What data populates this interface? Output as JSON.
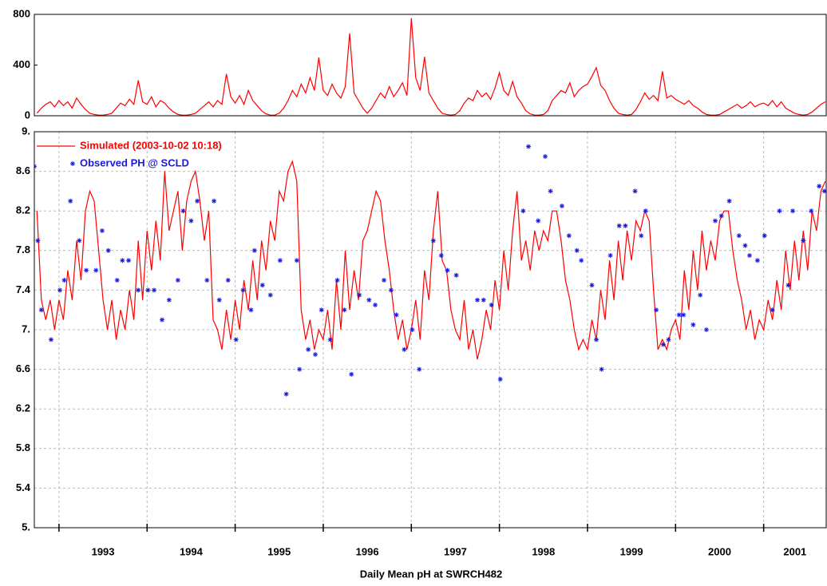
{
  "chart_data": [
    {
      "type": "line",
      "color": "#ff0000",
      "x": [
        1992.75,
        1992.8,
        1992.85,
        1992.9,
        1992.95,
        1993,
        1993.05,
        1993.1,
        1993.15,
        1993.2,
        1993.25,
        1993.3,
        1993.35,
        1993.4,
        1993.45,
        1993.5,
        1993.55,
        1993.6,
        1993.65,
        1993.7,
        1993.75,
        1993.8,
        1993.85,
        1993.9,
        1993.95,
        1994,
        1994.05,
        1994.1,
        1994.15,
        1994.2,
        1994.25,
        1994.3,
        1994.35,
        1994.4,
        1994.45,
        1994.5,
        1994.55,
        1994.6,
        1994.65,
        1994.7,
        1994.75,
        1994.8,
        1994.85,
        1994.9,
        1994.95,
        1995,
        1995.05,
        1995.1,
        1995.15,
        1995.2,
        1995.25,
        1995.3,
        1995.35,
        1995.4,
        1995.45,
        1995.5,
        1995.55,
        1995.6,
        1995.65,
        1995.7,
        1995.75,
        1995.8,
        1995.85,
        1995.9,
        1995.95,
        1996,
        1996.05,
        1996.1,
        1996.15,
        1996.2,
        1996.25,
        1996.3,
        1996.35,
        1996.4,
        1996.45,
        1996.5,
        1996.55,
        1996.6,
        1996.65,
        1996.7,
        1996.75,
        1996.8,
        1996.85,
        1996.9,
        1996.95,
        1997,
        1997.05,
        1997.1,
        1997.15,
        1997.2,
        1997.25,
        1997.3,
        1997.35,
        1997.4,
        1997.45,
        1997.5,
        1997.55,
        1997.6,
        1997.65,
        1997.7,
        1997.75,
        1997.8,
        1997.85,
        1997.9,
        1997.95,
        1998,
        1998.05,
        1998.1,
        1998.15,
        1998.2,
        1998.25,
        1998.3,
        1998.35,
        1998.4,
        1998.45,
        1998.5,
        1998.55,
        1998.6,
        1998.65,
        1998.7,
        1998.75,
        1998.8,
        1998.85,
        1998.9,
        1998.95,
        1999,
        1999.05,
        1999.1,
        1999.15,
        1999.2,
        1999.25,
        1999.3,
        1999.35,
        1999.4,
        1999.45,
        1999.5,
        1999.55,
        1999.6,
        1999.65,
        1999.7,
        1999.75,
        1999.8,
        1999.85,
        1999.9,
        1999.95,
        2000,
        2000.05,
        2000.1,
        2000.15,
        2000.2,
        2000.25,
        2000.3,
        2000.35,
        2000.4,
        2000.45,
        2000.5,
        2000.55,
        2000.6,
        2000.65,
        2000.7,
        2000.75,
        2000.8,
        2000.85,
        2000.9,
        2000.95,
        2001,
        2001.05,
        2001.1,
        2001.15,
        2001.2,
        2001.25,
        2001.3,
        2001.35,
        2001.4,
        2001.45,
        2001.5,
        2001.55,
        2001.6,
        2001.65,
        2001.7
      ],
      "values": [
        20,
        60,
        90,
        110,
        70,
        120,
        80,
        110,
        60,
        140,
        90,
        50,
        20,
        10,
        5,
        5,
        10,
        20,
        60,
        100,
        80,
        130,
        90,
        280,
        110,
        90,
        150,
        70,
        120,
        100,
        60,
        30,
        10,
        5,
        5,
        10,
        20,
        50,
        80,
        110,
        70,
        120,
        90,
        330,
        150,
        100,
        160,
        90,
        200,
        120,
        80,
        40,
        15,
        5,
        5,
        20,
        60,
        120,
        200,
        150,
        250,
        180,
        300,
        200,
        460,
        200,
        160,
        250,
        180,
        140,
        230,
        650,
        180,
        120,
        60,
        20,
        60,
        120,
        180,
        140,
        230,
        150,
        200,
        260,
        160,
        770,
        300,
        200,
        465,
        180,
        120,
        60,
        20,
        10,
        5,
        10,
        40,
        100,
        140,
        120,
        200,
        150,
        180,
        130,
        220,
        340,
        200,
        160,
        270,
        150,
        100,
        40,
        15,
        5,
        5,
        10,
        40,
        120,
        160,
        200,
        180,
        260,
        150,
        200,
        230,
        250,
        310,
        380,
        240,
        200,
        120,
        60,
        20,
        10,
        5,
        10,
        50,
        110,
        180,
        130,
        160,
        120,
        350,
        140,
        160,
        130,
        110,
        90,
        120,
        80,
        60,
        30,
        10,
        5,
        5,
        10,
        30,
        50,
        70,
        90,
        60,
        80,
        110,
        70,
        90,
        100,
        80,
        120,
        70,
        110,
        60,
        40,
        20,
        10,
        5,
        10,
        30,
        60,
        90,
        110
      ],
      "xlim": [
        1992.72,
        2001.71
      ],
      "ylim": [
        0,
        800
      ],
      "yticks": [
        0,
        400,
        800
      ],
      "grid": false
    },
    {
      "type": "line",
      "xlabel": "Daily Mean pH at SWRCH482",
      "legend": "upper left",
      "grid": true,
      "xlim": [
        1992.72,
        2001.71
      ],
      "xticks": [
        1993,
        1994,
        1995,
        1996,
        1997,
        1998,
        1999,
        2000,
        2001
      ],
      "ylim": [
        5,
        9
      ],
      "yticks": [
        {
          "value": 5,
          "label": "5."
        },
        5.4,
        5.8,
        6.2,
        6.6,
        {
          "value": 7,
          "label": "7."
        },
        7.4,
        7.8,
        8.2,
        8.6,
        {
          "value": 9,
          "label": "9."
        }
      ],
      "series": [
        {
          "name": "Simulated (2003-10-02 10:18)",
          "color": "#ff0000",
          "style": "line",
          "x": [
            1992.75,
            1992.8,
            1992.85,
            1992.9,
            1992.95,
            1993,
            1993.05,
            1993.1,
            1993.15,
            1993.2,
            1993.25,
            1993.3,
            1993.35,
            1993.4,
            1993.45,
            1993.5,
            1993.55,
            1993.6,
            1993.65,
            1993.7,
            1993.75,
            1993.8,
            1993.85,
            1993.9,
            1993.95,
            1994,
            1994.05,
            1994.1,
            1994.15,
            1994.2,
            1994.25,
            1994.3,
            1994.35,
            1994.4,
            1994.45,
            1994.5,
            1994.55,
            1994.6,
            1994.65,
            1994.7,
            1994.75,
            1994.8,
            1994.85,
            1994.9,
            1994.95,
            1995,
            1995.05,
            1995.1,
            1995.15,
            1995.2,
            1995.25,
            1995.3,
            1995.35,
            1995.4,
            1995.45,
            1995.5,
            1995.55,
            1995.6,
            1995.65,
            1995.7,
            1995.75,
            1995.8,
            1995.85,
            1995.9,
            1995.95,
            1996,
            1996.05,
            1996.1,
            1996.15,
            1996.2,
            1996.25,
            1996.3,
            1996.35,
            1996.4,
            1996.45,
            1996.5,
            1996.55,
            1996.6,
            1996.65,
            1996.7,
            1996.75,
            1996.8,
            1996.85,
            1996.9,
            1996.95,
            1997,
            1997.05,
            1997.1,
            1997.15,
            1997.2,
            1997.25,
            1997.3,
            1997.35,
            1997.4,
            1997.45,
            1997.5,
            1997.55,
            1997.6,
            1997.65,
            1997.7,
            1997.75,
            1997.8,
            1997.85,
            1997.9,
            1997.95,
            1998,
            1998.05,
            1998.1,
            1998.15,
            1998.2,
            1998.25,
            1998.3,
            1998.35,
            1998.4,
            1998.45,
            1998.5,
            1998.55,
            1998.6,
            1998.65,
            1998.7,
            1998.75,
            1998.8,
            1998.85,
            1998.9,
            1998.95,
            1999,
            1999.05,
            1999.1,
            1999.15,
            1999.2,
            1999.25,
            1999.3,
            1999.35,
            1999.4,
            1999.45,
            1999.5,
            1999.55,
            1999.6,
            1999.65,
            1999.7,
            1999.75,
            1999.8,
            1999.85,
            1999.9,
            1999.95,
            2000,
            2000.05,
            2000.1,
            2000.15,
            2000.2,
            2000.25,
            2000.3,
            2000.35,
            2000.4,
            2000.45,
            2000.5,
            2000.55,
            2000.6,
            2000.65,
            2000.7,
            2000.75,
            2000.8,
            2000.85,
            2000.9,
            2000.95,
            2001,
            2001.05,
            2001.1,
            2001.15,
            2001.2,
            2001.25,
            2001.3,
            2001.35,
            2001.4,
            2001.45,
            2001.5,
            2001.55,
            2001.6,
            2001.65,
            2001.7
          ],
          "values": [
            8.2,
            7.3,
            7.1,
            7.3,
            7.0,
            7.3,
            7.1,
            7.6,
            7.3,
            7.9,
            7.5,
            8.2,
            8.4,
            8.3,
            7.8,
            7.3,
            7.0,
            7.3,
            6.9,
            7.2,
            7.0,
            7.4,
            7.1,
            7.9,
            7.3,
            8.0,
            7.6,
            8.1,
            7.7,
            8.6,
            8.0,
            8.2,
            8.4,
            7.8,
            8.3,
            8.5,
            8.6,
            8.3,
            7.9,
            8.2,
            7.1,
            7.0,
            6.8,
            7.2,
            6.9,
            7.3,
            7.0,
            7.5,
            7.2,
            7.7,
            7.3,
            7.9,
            7.6,
            8.1,
            7.9,
            8.4,
            8.3,
            8.6,
            8.7,
            8.5,
            7.2,
            6.9,
            7.1,
            6.8,
            7.0,
            6.9,
            7.2,
            6.8,
            7.5,
            7.0,
            7.8,
            7.2,
            7.6,
            7.3,
            7.9,
            8.0,
            8.2,
            8.4,
            8.3,
            7.9,
            7.6,
            7.2,
            6.9,
            7.1,
            6.8,
            7.0,
            7.3,
            6.9,
            7.6,
            7.3,
            8.0,
            8.4,
            7.7,
            7.6,
            7.2,
            7.0,
            6.9,
            7.3,
            6.8,
            7.0,
            6.7,
            6.9,
            7.2,
            7.0,
            7.5,
            7.2,
            7.8,
            7.4,
            8.0,
            8.4,
            7.7,
            7.9,
            7.6,
            8.0,
            7.8,
            8.0,
            7.9,
            8.2,
            8.2,
            7.9,
            7.5,
            7.3,
            7.0,
            6.8,
            6.9,
            6.8,
            7.1,
            6.9,
            7.4,
            7.1,
            7.7,
            7.3,
            7.9,
            7.5,
            8.0,
            7.7,
            8.1,
            8.0,
            8.2,
            8.1,
            7.4,
            6.8,
            6.9,
            6.8,
            7.0,
            7.1,
            6.9,
            7.6,
            7.2,
            7.8,
            7.4,
            8.0,
            7.6,
            7.9,
            7.7,
            8.1,
            8.2,
            8.2,
            7.8,
            7.5,
            7.3,
            7.0,
            7.2,
            6.9,
            7.1,
            7.0,
            7.3,
            7.1,
            7.5,
            7.2,
            7.8,
            7.4,
            7.9,
            7.5,
            8.0,
            7.6,
            8.2,
            8.0,
            8.4,
            8.5
          ]
        },
        {
          "name": "Observed PH @ SCLD",
          "color": "#1a1adc",
          "style": "marker",
          "x": [
            1992.72,
            1992.76,
            1992.8,
            1992.91,
            1993.01,
            1993.06,
            1993.13,
            1993.23,
            1993.31,
            1993.42,
            1993.49,
            1993.56,
            1993.66,
            1993.72,
            1993.79,
            1993.9,
            1994.01,
            1994.08,
            1994.17,
            1994.25,
            1994.35,
            1994.41,
            1994.5,
            1994.57,
            1994.68,
            1994.76,
            1994.82,
            1994.92,
            1995.01,
            1995.09,
            1995.18,
            1995.22,
            1995.31,
            1995.4,
            1995.51,
            1995.58,
            1995.7,
            1995.73,
            1995.83,
            1995.91,
            1995.98,
            1996.08,
            1996.16,
            1996.24,
            1996.32,
            1996.41,
            1996.52,
            1996.59,
            1996.69,
            1996.77,
            1996.83,
            1996.92,
            1997.01,
            1997.09,
            1997.25,
            1997.34,
            1997.41,
            1997.51,
            1997.75,
            1997.82,
            1997.91,
            1998.01,
            1998.27,
            1998.33,
            1998.44,
            1998.52,
            1998.58,
            1998.71,
            1998.79,
            1998.88,
            1998.93,
            1999.05,
            1999.1,
            1999.16,
            1999.26,
            1999.36,
            1999.43,
            1999.54,
            1999.61,
            1999.66,
            1999.78,
            1999.86,
            1999.92,
            2000.04,
            2000.09,
            2000.2,
            2000.28,
            2000.35,
            2000.45,
            2000.52,
            2000.61,
            2000.72,
            2000.79,
            2000.84,
            2000.93,
            2001.01,
            2001.1,
            2001.18,
            2001.28,
            2001.33,
            2001.45,
            2001.54,
            2001.63,
            2001.69
          ],
          "values": [
            8.65,
            7.9,
            7.2,
            6.9,
            7.4,
            7.5,
            8.3,
            7.9,
            7.6,
            7.6,
            8.0,
            7.8,
            7.5,
            7.7,
            7.7,
            7.4,
            7.4,
            7.4,
            7.1,
            7.3,
            7.5,
            8.2,
            8.1,
            8.3,
            7.5,
            8.3,
            7.3,
            7.5,
            6.9,
            7.4,
            7.2,
            7.8,
            7.45,
            7.35,
            7.7,
            6.35,
            7.7,
            6.6,
            6.8,
            6.75,
            7.2,
            6.9,
            7.5,
            7.2,
            6.55,
            7.35,
            7.3,
            7.25,
            7.5,
            7.4,
            7.15,
            6.8,
            7.0,
            6.6,
            7.9,
            7.75,
            7.6,
            7.55,
            7.3,
            7.3,
            7.25,
            6.5,
            8.2,
            8.85,
            8.1,
            8.75,
            8.4,
            8.25,
            7.95,
            7.8,
            7.7,
            7.45,
            6.9,
            6.6,
            7.75,
            8.05,
            8.05,
            8.4,
            7.95,
            8.2,
            7.2,
            6.85,
            6.9,
            7.15,
            7.15,
            7.05,
            7.35,
            7.0,
            8.1,
            8.15,
            8.3,
            7.95,
            7.85,
            7.75,
            7.7,
            7.95,
            7.2,
            8.2,
            7.45,
            8.2,
            7.9,
            8.2,
            8.45,
            8.4
          ]
        }
      ]
    }
  ]
}
